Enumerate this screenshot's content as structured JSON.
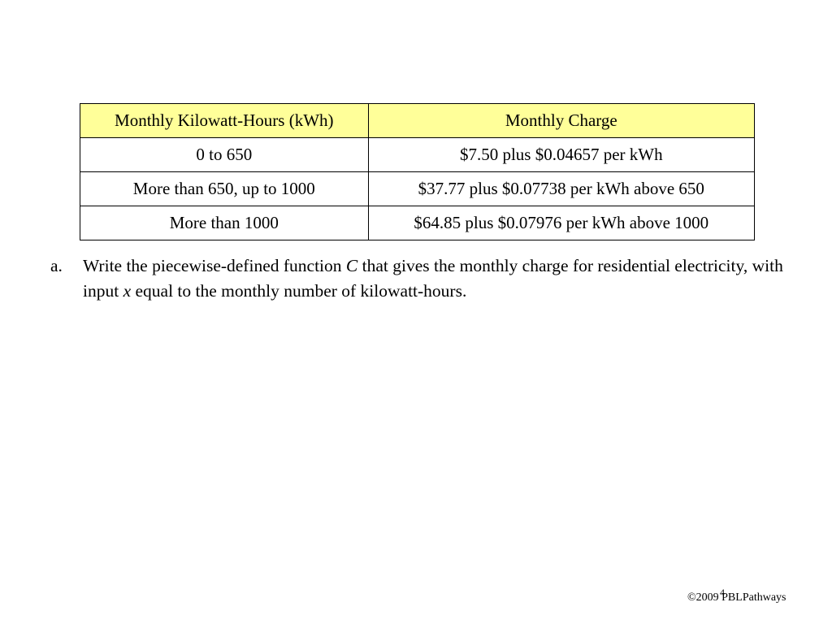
{
  "table": {
    "headers": [
      "Monthly Kilowatt-Hours (kWh)",
      "Monthly Charge"
    ],
    "rows": [
      [
        "0 to 650",
        "$7.50 plus $0.04657 per kWh"
      ],
      [
        "More than 650, up to 1000",
        "$37.77 plus $0.07738 per kWh above 650"
      ],
      [
        "More than 1000",
        "$64.85 plus $0.07976 per kWh above 1000"
      ]
    ]
  },
  "question": {
    "marker": "a.",
    "part1": "Write the piecewise-defined function ",
    "var1": "C",
    "part2": " that gives the monthly charge for residential electricity, with input ",
    "var2": "x",
    "part3": " equal to the monthly number of kilowatt-hours."
  },
  "footer": {
    "copyright": "©2009 PBLPathways",
    "page_number": "4"
  },
  "colors": {
    "header_background": "#ffff99"
  }
}
